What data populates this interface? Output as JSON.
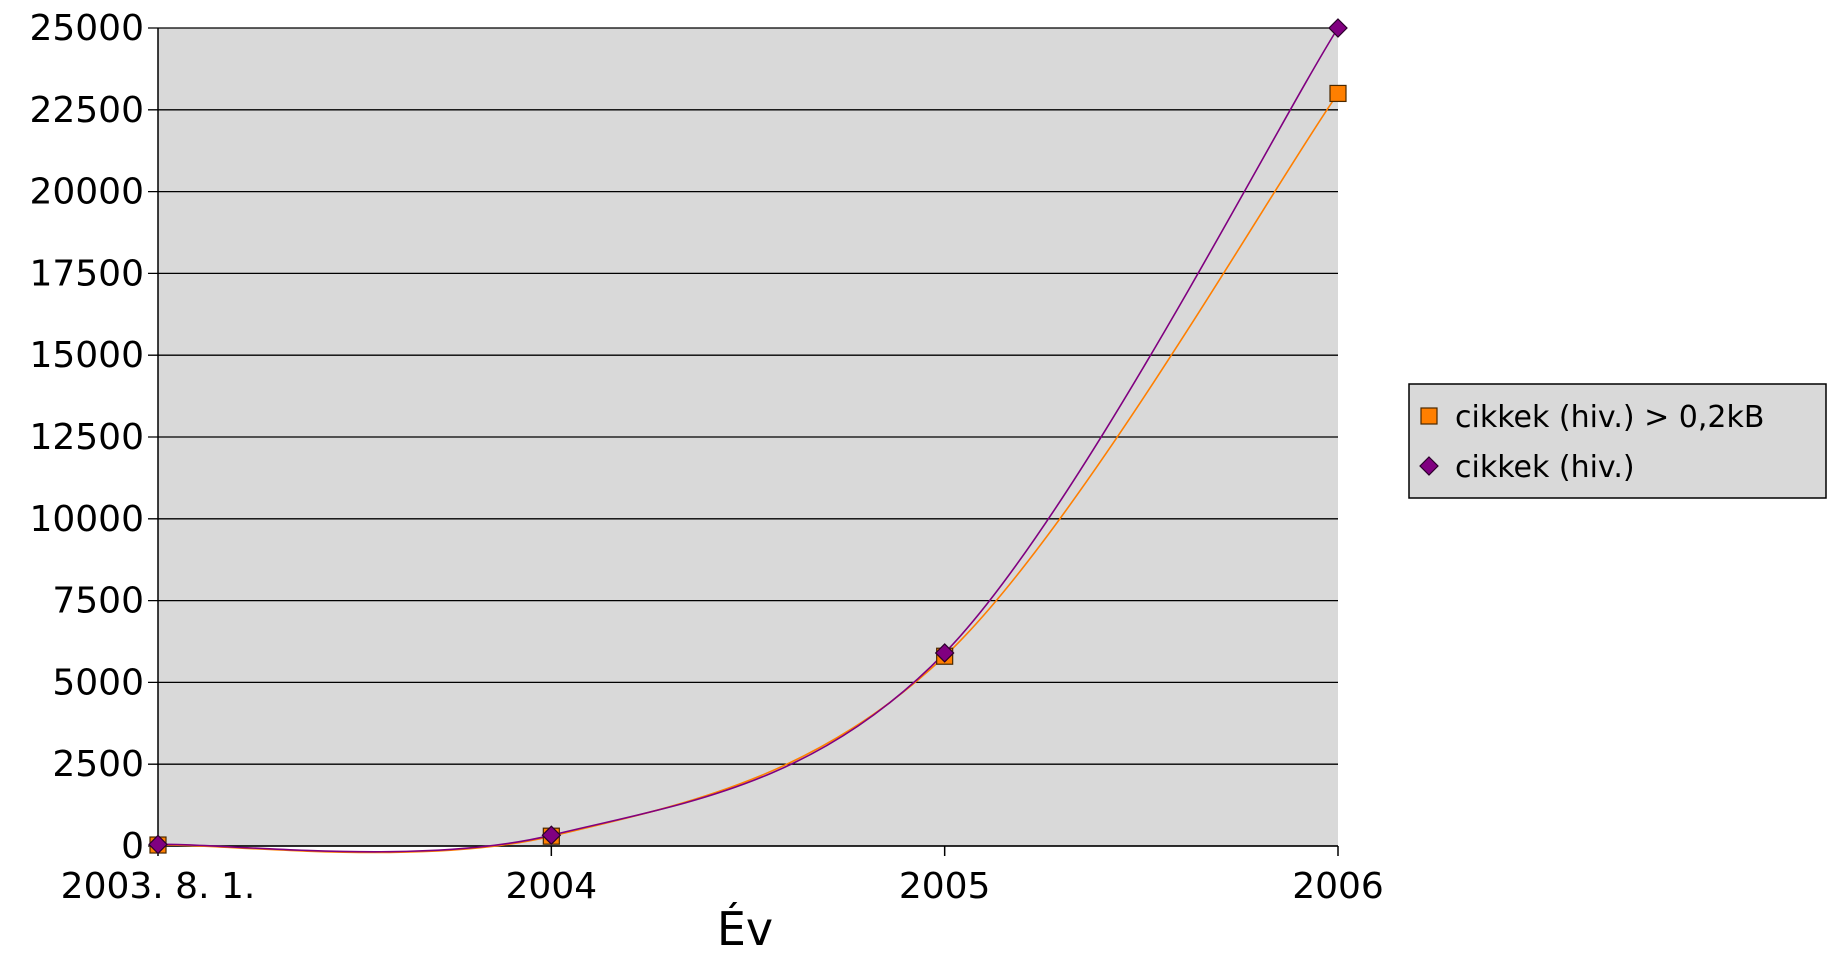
{
  "chart_data": {
    "type": "line",
    "title": "",
    "xlabel": "Év",
    "ylabel": "",
    "x_tick_labels": [
      "2003. 8. 1.",
      "2004",
      "2005",
      "2006"
    ],
    "ylim": [
      0,
      25000
    ],
    "y_ticks": [
      0,
      2500,
      5000,
      7500,
      10000,
      12500,
      15000,
      17500,
      20000,
      22500,
      25000
    ],
    "grid": "horizontal",
    "legend_position": "right",
    "plot_background": "#d9d9d9",
    "series": [
      {
        "name": "cikkek (hiv.) > 0,2kB",
        "color": "#ff7f00",
        "marker": "square",
        "x": [
          "2003. 8. 1.",
          "2004",
          "2005",
          "2006"
        ],
        "values": [
          30,
          300,
          5800,
          23000
        ]
      },
      {
        "name": "cikkek (hiv.)",
        "color": "#800080",
        "marker": "diamond",
        "x": [
          "2003. 8. 1.",
          "2004",
          "2005",
          "2006"
        ],
        "values": [
          50,
          330,
          5900,
          25000
        ]
      }
    ]
  }
}
